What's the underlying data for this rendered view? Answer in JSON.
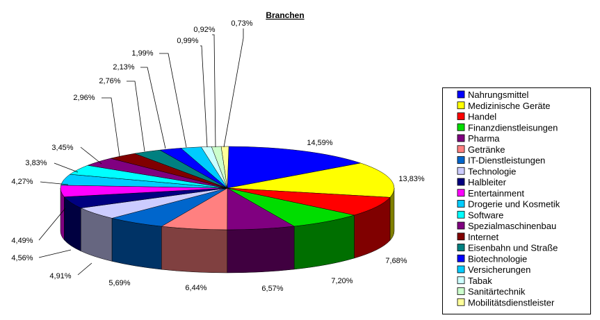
{
  "chart_data": {
    "type": "pie",
    "title": "Branchen",
    "legend_placement": "right",
    "slices": [
      {
        "label": "Nahrungsmittel",
        "value": 14.59,
        "value_label": "14,59%",
        "color": "#0000ff"
      },
      {
        "label": "Medizinische Geräte",
        "value": 13.83,
        "value_label": "13,83%",
        "color": "#ffff00"
      },
      {
        "label": "Handel",
        "value": 7.68,
        "value_label": "7,68%",
        "color": "#ff0000"
      },
      {
        "label": "Finanzdienstleisungen",
        "value": 7.2,
        "value_label": "7,20%",
        "color": "#00dd00"
      },
      {
        "label": "Pharma",
        "value": 6.57,
        "value_label": "6,57%",
        "color": "#800080"
      },
      {
        "label": "Getränke",
        "value": 6.44,
        "value_label": "6,44%",
        "color": "#ff8080"
      },
      {
        "label": "IT-Dienstleistungen",
        "value": 5.69,
        "value_label": "5,69%",
        "color": "#0066cc"
      },
      {
        "label": "Technologie",
        "value": 4.91,
        "value_label": "4,91%",
        "color": "#ccccff"
      },
      {
        "label": "Halbleiter",
        "value": 4.56,
        "value_label": "4,56%",
        "color": "#000080"
      },
      {
        "label": "Entertainment",
        "value": 4.49,
        "value_label": "4,49%",
        "color": "#ff00ff"
      },
      {
        "label": "Drogerie und Kosmetik",
        "value": 4.27,
        "value_label": "4,27%",
        "color": "#00ccff"
      },
      {
        "label": "Software",
        "value": 3.83,
        "value_label": "3,83%",
        "color": "#00ffff"
      },
      {
        "label": "Spezialmaschinenbau",
        "value": 3.45,
        "value_label": "3,45%",
        "color": "#800080"
      },
      {
        "label": "Internet",
        "value": 2.96,
        "value_label": "2,96%",
        "color": "#800000"
      },
      {
        "label": "Eisenbahn und Straße",
        "value": 2.76,
        "value_label": "2,76%",
        "color": "#008080"
      },
      {
        "label": "Biotechnologie",
        "value": 2.13,
        "value_label": "2,13%",
        "color": "#0000ff"
      },
      {
        "label": "Versicherungen",
        "value": 1.99,
        "value_label": "1,99%",
        "color": "#00ccff"
      },
      {
        "label": "Tabak",
        "value": 0.99,
        "value_label": "0,99%",
        "color": "#ccffff"
      },
      {
        "label": "Sanitärtechnik",
        "value": 0.92,
        "value_label": "0,92%",
        "color": "#ccffcc"
      },
      {
        "label": "Mobilitätsdienstleister",
        "value": 0.73,
        "value_label": "0,73%",
        "color": "#ffff99"
      }
    ]
  }
}
